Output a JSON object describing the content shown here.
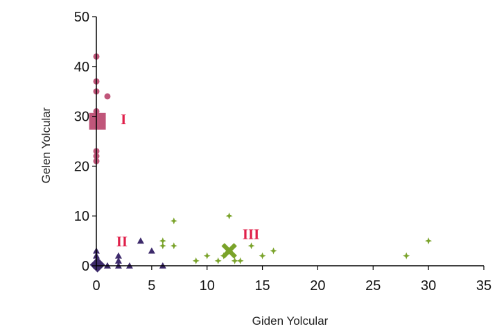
{
  "chart_data": {
    "type": "scatter",
    "xlabel": "Giden Yolcular",
    "ylabel": "Gelen Yolcular",
    "xlim": [
      0,
      35
    ],
    "ylim": [
      0,
      50
    ],
    "x_ticks": [
      "0",
      "5",
      "10",
      "15",
      "20",
      "25",
      "30",
      "35"
    ],
    "y_ticks": [
      "0",
      "10",
      "20",
      "30",
      "40",
      "50"
    ],
    "grid": false,
    "series": [
      {
        "cluster": "I",
        "color": "#c0567a",
        "marker": "circle",
        "points": [
          [
            0,
            42
          ],
          [
            0,
            37
          ],
          [
            0,
            35
          ],
          [
            1,
            34
          ],
          [
            0,
            31
          ],
          [
            0,
            30
          ],
          [
            0,
            29
          ],
          [
            0,
            28
          ],
          [
            0,
            23
          ],
          [
            0,
            22
          ],
          [
            0,
            21
          ]
        ],
        "centroid": [
          0.1,
          29
        ],
        "centroid_marker": "square"
      },
      {
        "cluster": "II",
        "color": "#3d2a6b",
        "marker": "triangle",
        "points": [
          [
            0,
            3
          ],
          [
            0,
            2
          ],
          [
            0,
            1
          ],
          [
            1,
            0
          ],
          [
            1,
            0
          ],
          [
            2,
            2
          ],
          [
            2,
            1
          ],
          [
            2,
            0
          ],
          [
            3,
            0
          ],
          [
            4,
            5
          ],
          [
            5,
            3
          ],
          [
            6,
            0
          ],
          [
            0,
            0
          ],
          [
            0,
            0
          ]
        ],
        "centroid": [
          0.1,
          0.2
        ],
        "centroid_marker": "diamond"
      },
      {
        "cluster": "III",
        "color": "#7aa32a",
        "marker": "star",
        "points": [
          [
            6,
            5
          ],
          [
            6,
            4
          ],
          [
            7,
            9
          ],
          [
            7,
            4
          ],
          [
            9,
            1
          ],
          [
            10,
            2
          ],
          [
            11,
            1
          ],
          [
            11.5,
            2
          ],
          [
            12,
            10
          ],
          [
            12.5,
            1
          ],
          [
            13,
            1
          ],
          [
            14,
            4
          ],
          [
            15,
            2
          ],
          [
            16,
            3
          ],
          [
            28,
            2
          ],
          [
            30,
            5
          ]
        ],
        "centroid": [
          12,
          3
        ],
        "centroid_marker": "x"
      }
    ],
    "annotations": [
      {
        "text": "I",
        "x": 2.2,
        "y": 29.5,
        "color": "#e0204a"
      },
      {
        "text": "II",
        "x": 1.8,
        "y": 5,
        "color": "#e0204a"
      },
      {
        "text": "III",
        "x": 13.2,
        "y": 6.5,
        "color": "#e0204a"
      }
    ]
  }
}
